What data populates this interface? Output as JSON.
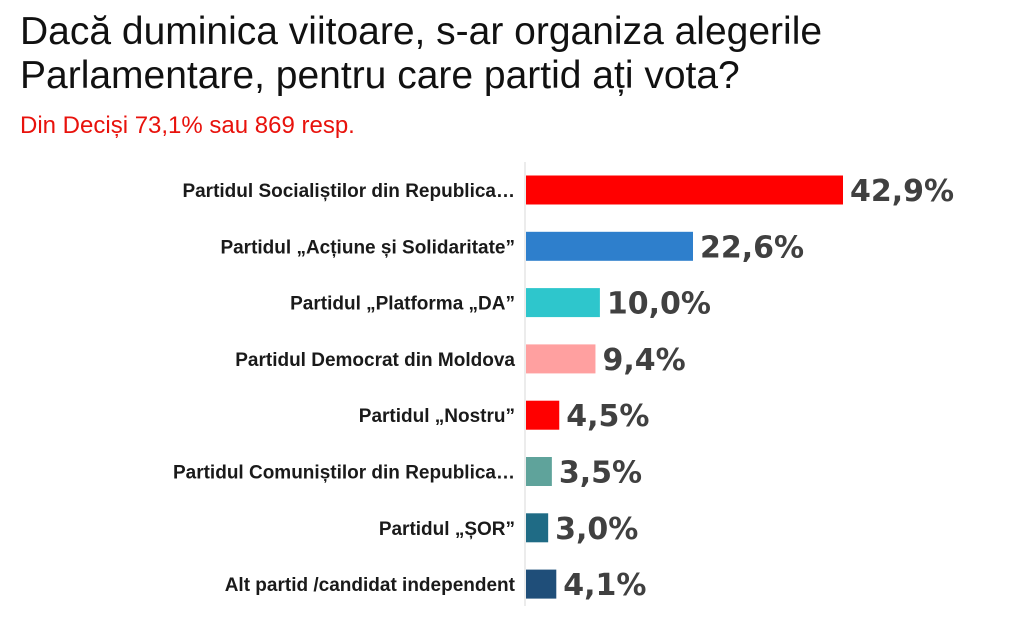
{
  "header": {
    "title": "Dacă duminica viitoare, s-ar organiza alegerile\nParlamentare, pentru care partid ați vota?",
    "subtitle": "Din Deciși 73,1% sau 869 resp."
  },
  "chart_data": {
    "type": "bar",
    "orientation": "horizontal",
    "title": "Dacă duminica viitoare, s-ar organiza alegerile Parlamentare, pentru care partid ați vota?",
    "subtitle": "Din Deciși 73,1% sau 869 resp.",
    "categories": [
      "Partidul Socialiștilor din Republica…",
      "Partidul „Acțiune și Solidaritate”",
      "Partidul „Platforma „DA”",
      "Partidul Democrat din Moldova",
      "Partidul „Nostru”",
      "Partidul Comuniștilor din Republica…",
      "Partidul „ȘOR”",
      "Alt partid /candidat independent"
    ],
    "values": [
      42.9,
      22.6,
      10.0,
      9.4,
      4.5,
      3.5,
      3.0,
      4.1
    ],
    "value_labels": [
      "42,9%",
      "22,6%",
      "10,0%",
      "9,4%",
      "4,5%",
      "3,5%",
      "3,0%",
      "4,1%"
    ],
    "colors": [
      "#ff0000",
      "#2e7fcc",
      "#2ec6cc",
      "#ffa0a0",
      "#ff0000",
      "#5fa39b",
      "#1f6b85",
      "#1f4e79"
    ],
    "xlim": [
      0,
      45
    ],
    "grid": false,
    "legend": "none"
  }
}
